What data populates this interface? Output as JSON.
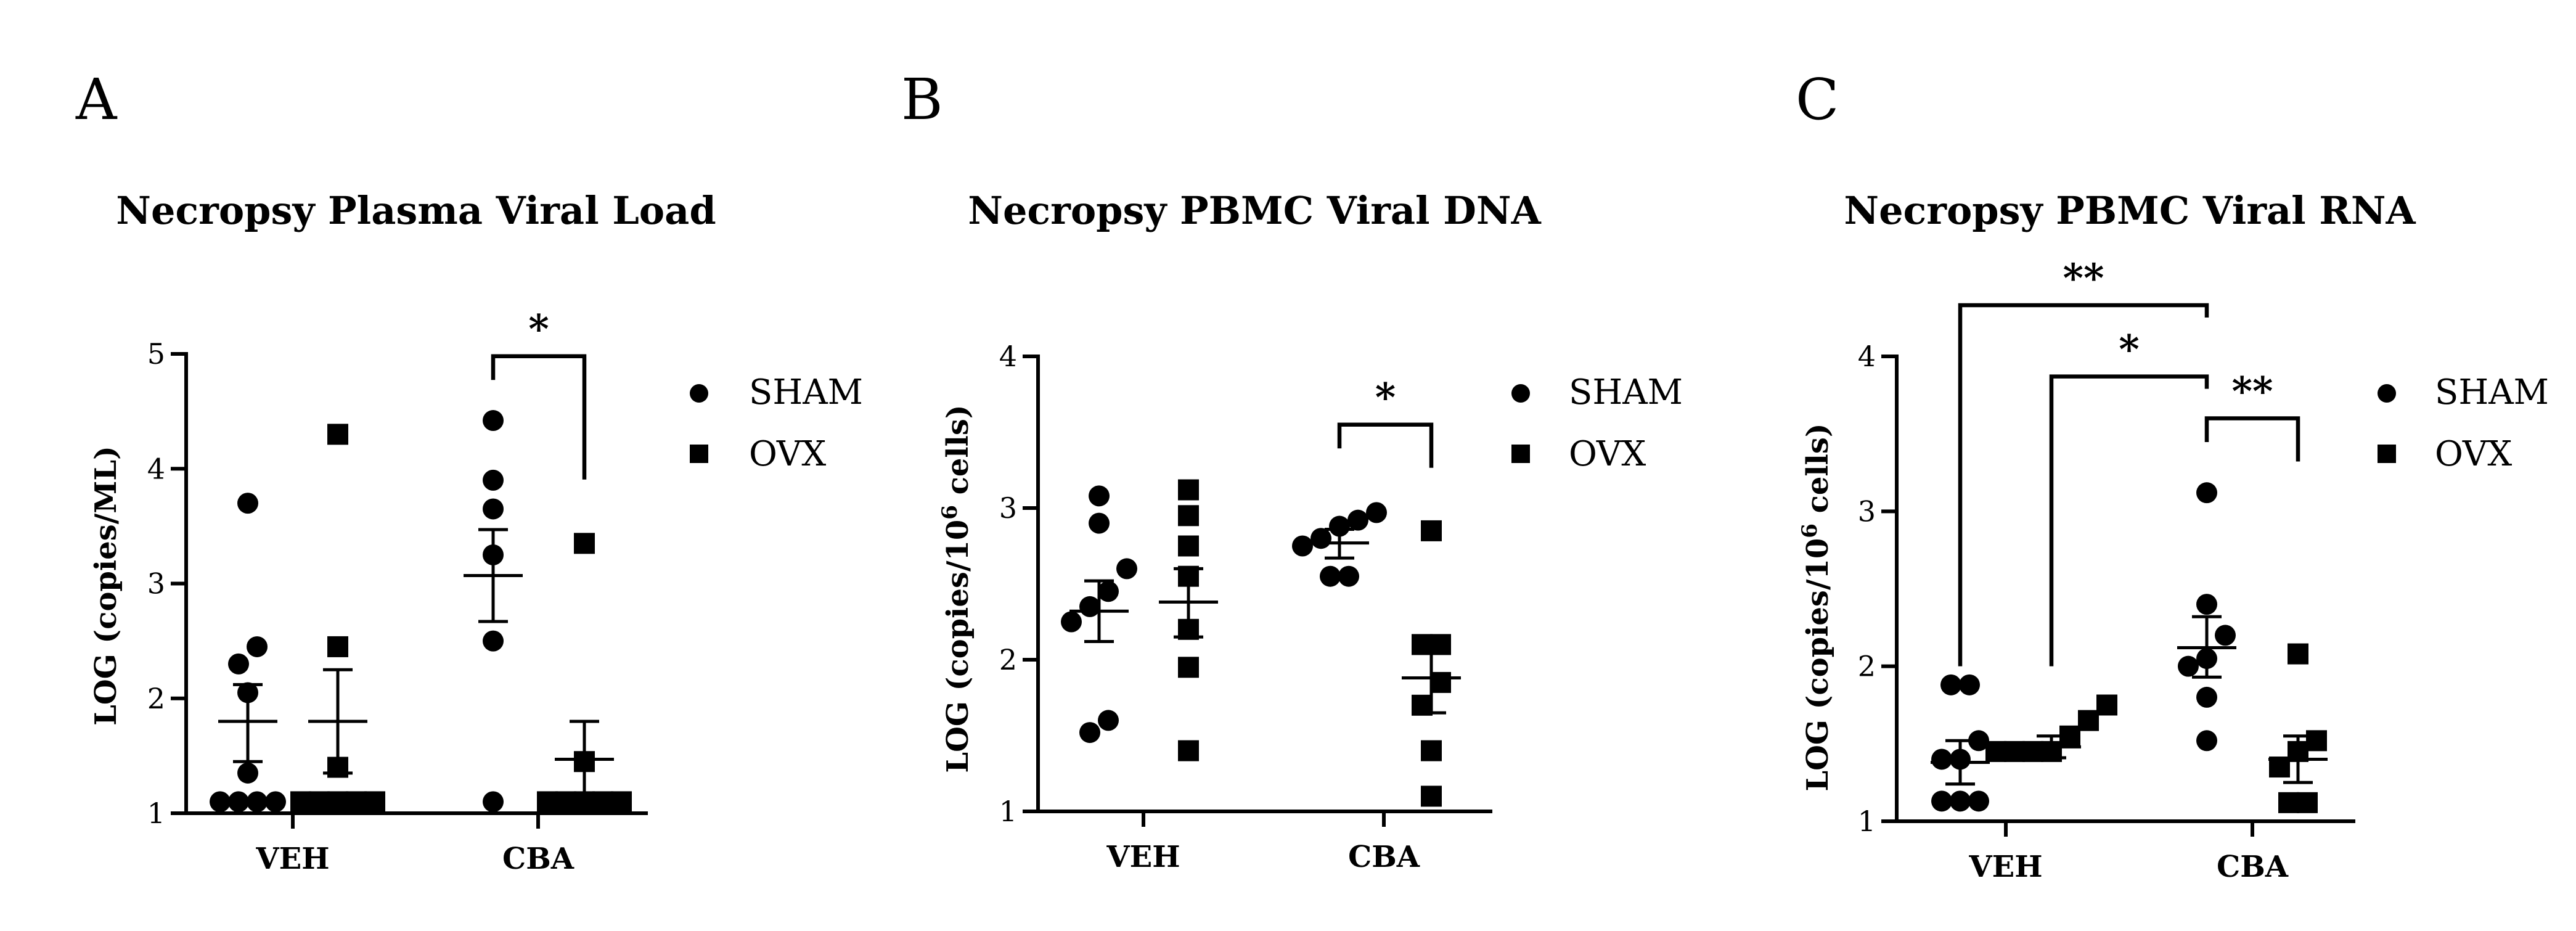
{
  "chart_data": [
    {
      "type": "scatter",
      "panel": "A",
      "title": "Necropsy Plasma Viral Load",
      "ylabel": "LOG (copies/ML)",
      "ylim": [
        1,
        5
      ],
      "yticks": [
        1,
        2,
        3,
        4,
        5
      ],
      "categories": [
        "VEH",
        "CBA"
      ],
      "series": [
        {
          "name": "SHAM",
          "marker": "circle",
          "groups": [
            {
              "category": "VEH",
              "values": [
                3.7,
                2.45,
                2.3,
                2.05,
                1.35,
                1.1,
                1.1,
                1.1,
                1.1
              ],
              "mean": 1.8,
              "sem_upper": 2.12,
              "sem_lower": 1.45
            },
            {
              "category": "CBA",
              "values": [
                4.42,
                3.9,
                3.65,
                3.25,
                2.5,
                1.1
              ],
              "mean": 3.07,
              "sem_upper": 3.47,
              "sem_lower": 2.67
            }
          ]
        },
        {
          "name": "OVX",
          "marker": "square",
          "groups": [
            {
              "category": "VEH",
              "values": [
                4.3,
                2.45,
                1.4,
                1.1,
                1.1,
                1.1,
                1.1,
                1.1
              ],
              "mean": 1.8,
              "sem_upper": 2.25,
              "sem_lower": 1.35
            },
            {
              "category": "CBA",
              "values": [
                3.35,
                1.45,
                1.1,
                1.1,
                1.1,
                1.1,
                1.1
              ],
              "mean": 1.47,
              "sem_upper": 1.8,
              "sem_lower": 1.15
            }
          ]
        }
      ],
      "significance": [
        {
          "label": "*",
          "from": "CBA SHAM",
          "to": "CBA OVX",
          "level": 4.98
        }
      ],
      "legend": "right"
    },
    {
      "type": "scatter",
      "panel": "B",
      "title": "Necropsy PBMC Viral DNA",
      "ylabel": "LOG (copies/10⁶ cells)",
      "ylim": [
        1,
        4
      ],
      "yticks": [
        1,
        2,
        3,
        4
      ],
      "categories": [
        "VEH",
        "CBA"
      ],
      "series": [
        {
          "name": "SHAM",
          "marker": "circle",
          "groups": [
            {
              "category": "VEH",
              "values": [
                3.08,
                2.9,
                2.6,
                2.45,
                2.35,
                2.25,
                1.6,
                1.52
              ],
              "mean": 2.32,
              "sem_upper": 2.52,
              "sem_lower": 2.12
            },
            {
              "category": "CBA",
              "values": [
                2.97,
                2.92,
                2.88,
                2.8,
                2.75,
                2.55,
                2.55
              ],
              "mean": 2.77,
              "sem_upper": 2.86,
              "sem_lower": 2.67
            }
          ]
        },
        {
          "name": "OVX",
          "marker": "square",
          "groups": [
            {
              "category": "VEH",
              "values": [
                3.12,
                2.95,
                2.75,
                2.55,
                2.2,
                1.95,
                1.4
              ],
              "mean": 2.38,
              "sem_upper": 2.6,
              "sem_lower": 2.15
            },
            {
              "category": "CBA",
              "values": [
                2.85,
                2.1,
                2.1,
                1.85,
                1.7,
                1.4,
                1.1
              ],
              "mean": 1.88,
              "sem_upper": 2.1,
              "sem_lower": 1.65
            }
          ]
        }
      ],
      "significance": [
        {
          "label": "*",
          "from": "CBA SHAM",
          "to": "CBA OVX",
          "level": 3.55
        }
      ],
      "legend": "right"
    },
    {
      "type": "scatter",
      "panel": "C",
      "title": "Necropsy PBMC Viral RNA",
      "ylabel": "LOG (copies/10⁶ cells)",
      "ylim": [
        1,
        4
      ],
      "yticks": [
        1,
        2,
        3,
        4
      ],
      "categories": [
        "VEH",
        "CBA"
      ],
      "series": [
        {
          "name": "SHAM",
          "marker": "circle",
          "groups": [
            {
              "category": "VEH",
              "values": [
                1.88,
                1.88,
                1.52,
                1.4,
                1.4,
                1.13,
                1.13,
                1.13
              ],
              "mean": 1.38,
              "sem_upper": 1.52,
              "sem_lower": 1.24
            },
            {
              "category": "CBA",
              "values": [
                3.12,
                2.4,
                2.2,
                2.05,
                2.0,
                1.8,
                1.52
              ],
              "mean": 2.12,
              "sem_upper": 2.32,
              "sem_lower": 1.93
            }
          ]
        },
        {
          "name": "OVX",
          "marker": "square",
          "groups": [
            {
              "category": "VEH",
              "values": [
                1.75,
                1.65,
                1.55,
                1.45,
                1.45,
                1.45,
                1.45
              ],
              "mean": 1.48,
              "sem_upper": 1.55,
              "sem_lower": 1.41
            },
            {
              "category": "CBA",
              "values": [
                2.08,
                1.52,
                1.45,
                1.35,
                1.12,
                1.12
              ],
              "mean": 1.4,
              "sem_upper": 1.55,
              "sem_lower": 1.25
            }
          ]
        }
      ],
      "significance": [
        {
          "label": "**",
          "from": "VEH SHAM",
          "to": "CBA SHAM",
          "level": 4.33
        },
        {
          "label": "*",
          "from": "VEH OVX",
          "to": "CBA SHAM",
          "level": 3.87
        },
        {
          "label": "**",
          "from": "CBA SHAM",
          "to": "CBA OVX",
          "level": 3.6
        }
      ],
      "legend": "right"
    }
  ]
}
